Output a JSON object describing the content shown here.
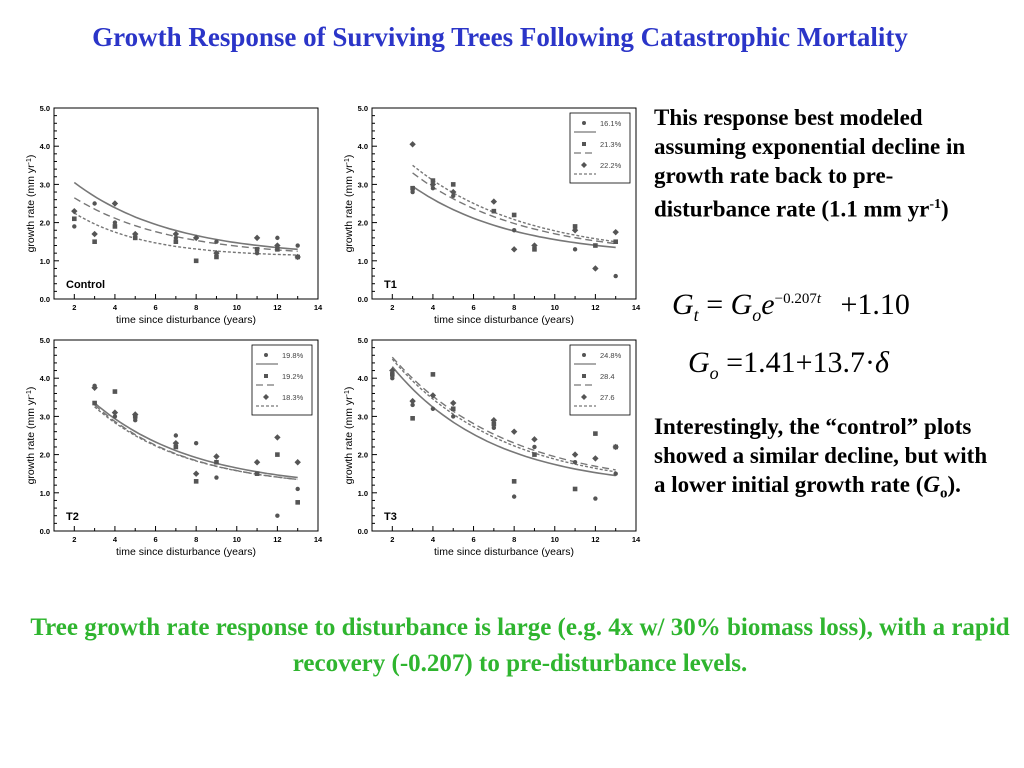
{
  "title": "Growth Response of Surviving Trees Following Catastrophic Mortality",
  "side": {
    "p1_a": "This response best modeled assuming exponential decline in growth rate back to pre-disturbance rate (1.1 mm yr",
    "p1_sup": "-1",
    "p1_b": ")",
    "p2_a": "Interestingly, the “control” plots showed a similar decline, but with a lower initial growth rate (",
    "p2_g": "G",
    "p2_o": "o",
    "p2_b": ")."
  },
  "equations": {
    "eq1": {
      "lhs": "G",
      "lhs_sub": "t",
      "eqsign": "=",
      "g": "G",
      "g_sub": "o",
      "e": "e",
      "exp": "−0.207",
      "exp_t": "t",
      "plus": "+1.10"
    },
    "eq2": {
      "lhs": "G",
      "lhs_sub": "o",
      "rhs": "=1.41+13.7·",
      "delta": "δ"
    }
  },
  "bottom_text": "Tree growth rate response to disturbance is large (e.g. 4x w/ 30% biomass loss), with a rapid recovery (-0.207) to pre-disturbance levels.",
  "chart_data": [
    {
      "type": "scatter",
      "panel_label": "Control",
      "xlabel": "time since disturbance (years)",
      "ylabel": "growth rate (mm yr",
      "ylabel_sup": "-1",
      "ylabel_end": ")",
      "xlim": [
        1,
        14
      ],
      "ylim": [
        0,
        5
      ],
      "xticks": [
        2,
        4,
        6,
        8,
        10,
        12,
        14
      ],
      "yticks": [
        "0.0",
        "1.0",
        "2.0",
        "3.0",
        "4.0",
        "5.0"
      ],
      "legend": [],
      "series": [
        {
          "marker": "circle",
          "line": "solid",
          "points": [
            [
              2,
              1.9
            ],
            [
              3,
              2.5
            ],
            [
              4,
              2.0
            ],
            [
              5,
              1.6
            ],
            [
              7,
              1.6
            ],
            [
              8,
              1.0
            ],
            [
              9,
              1.5
            ],
            [
              11,
              1.2
            ],
            [
              12,
              1.6
            ],
            [
              13,
              1.4
            ]
          ],
          "curve": [
            [
              2,
              3.05
            ],
            [
              13,
              1.3
            ]
          ]
        },
        {
          "marker": "square",
          "line": "dashed",
          "points": [
            [
              2,
              2.1
            ],
            [
              3,
              1.5
            ],
            [
              4,
              1.9
            ],
            [
              5,
              1.6
            ],
            [
              7,
              1.5
            ],
            [
              8,
              1.0
            ],
            [
              9,
              1.1
            ],
            [
              11,
              1.3
            ],
            [
              12,
              1.3
            ],
            [
              13,
              1.1
            ]
          ],
          "curve": [
            [
              2,
              2.65
            ],
            [
              13,
              1.25
            ]
          ]
        },
        {
          "marker": "diamond",
          "line": "dotted",
          "points": [
            [
              2,
              2.3
            ],
            [
              3,
              1.7
            ],
            [
              4,
              2.5
            ],
            [
              5,
              1.7
            ],
            [
              7,
              1.7
            ],
            [
              8,
              1.6
            ],
            [
              9,
              1.2
            ],
            [
              11,
              1.6
            ],
            [
              12,
              1.4
            ],
            [
              13,
              1.1
            ]
          ],
          "curve": [
            [
              2,
              2.25
            ],
            [
              13,
              1.15
            ]
          ]
        }
      ]
    },
    {
      "type": "scatter",
      "panel_label": "T1",
      "xlabel": "time since disturbance (years)",
      "ylabel": "growth rate (mm yr",
      "ylabel_sup": "-1",
      "ylabel_end": ")",
      "xlim": [
        1,
        14
      ],
      "ylim": [
        0,
        5
      ],
      "xticks": [
        2,
        4,
        6,
        8,
        10,
        12,
        14
      ],
      "yticks": [
        "0.0",
        "1.0",
        "2.0",
        "3.0",
        "4.0",
        "5.0"
      ],
      "legend": [
        "16.1%",
        "21.3%",
        "22.2%"
      ],
      "series": [
        {
          "marker": "circle",
          "line": "solid",
          "points": [
            [
              3,
              2.8
            ],
            [
              4,
              2.9
            ],
            [
              5,
              2.7
            ],
            [
              7,
              2.3
            ],
            [
              8,
              1.8
            ],
            [
              9,
              1.4
            ],
            [
              11,
              1.3
            ],
            [
              12,
              0.8
            ],
            [
              13,
              0.6
            ]
          ],
          "curve": [
            [
              3,
              2.95
            ],
            [
              13,
              1.35
            ]
          ]
        },
        {
          "marker": "square",
          "line": "dashed",
          "points": [
            [
              3,
              2.9
            ],
            [
              4,
              3.1
            ],
            [
              5,
              3.0
            ],
            [
              7,
              2.3
            ],
            [
              8,
              2.2
            ],
            [
              9,
              1.3
            ],
            [
              11,
              1.9
            ],
            [
              12,
              1.4
            ],
            [
              13,
              1.5
            ]
          ],
          "curve": [
            [
              3,
              3.3
            ],
            [
              13,
              1.45
            ]
          ]
        },
        {
          "marker": "diamond",
          "line": "dotted",
          "points": [
            [
              3,
              4.05
            ],
            [
              4,
              3.0
            ],
            [
              5,
              2.8
            ],
            [
              7,
              2.55
            ],
            [
              8,
              1.3
            ],
            [
              9,
              1.4
            ],
            [
              11,
              1.8
            ],
            [
              12,
              0.8
            ],
            [
              13,
              1.75
            ]
          ],
          "curve": [
            [
              3,
              3.5
            ],
            [
              13,
              1.5
            ]
          ]
        }
      ]
    },
    {
      "type": "scatter",
      "panel_label": "T2",
      "xlabel": "time since disturbance (years)",
      "ylabel": "growth rate (mm yr",
      "ylabel_sup": "-1",
      "ylabel_end": ")",
      "xlim": [
        1,
        14
      ],
      "ylim": [
        0,
        5
      ],
      "xticks": [
        2,
        4,
        6,
        8,
        10,
        12,
        14
      ],
      "yticks": [
        "0.0",
        "1.0",
        "2.0",
        "3.0",
        "4.0",
        "5.0"
      ],
      "legend": [
        "19.8%",
        "19.2%",
        "18.3%"
      ],
      "series": [
        {
          "marker": "circle",
          "line": "solid",
          "points": [
            [
              3,
              3.8
            ],
            [
              4,
              3.0
            ],
            [
              5,
              2.9
            ],
            [
              7,
              2.5
            ],
            [
              8,
              2.3
            ],
            [
              9,
              1.4
            ],
            [
              11,
              1.5
            ],
            [
              12,
              0.4
            ],
            [
              13,
              1.1
            ]
          ],
          "curve": [
            [
              3,
              3.35
            ],
            [
              13,
              1.4
            ]
          ]
        },
        {
          "marker": "square",
          "line": "dashed",
          "points": [
            [
              3,
              3.35
            ],
            [
              4,
              3.65
            ],
            [
              5,
              3.0
            ],
            [
              7,
              2.2
            ],
            [
              8,
              1.3
            ],
            [
              9,
              1.8
            ],
            [
              11,
              1.5
            ],
            [
              12,
              2.0
            ],
            [
              13,
              0.75
            ]
          ],
          "curve": [
            [
              3,
              3.3
            ],
            [
              13,
              1.35
            ]
          ]
        },
        {
          "marker": "diamond",
          "line": "dotted",
          "points": [
            [
              3,
              3.75
            ],
            [
              4,
              3.1
            ],
            [
              5,
              3.05
            ],
            [
              7,
              2.3
            ],
            [
              8,
              1.5
            ],
            [
              9,
              1.95
            ],
            [
              11,
              1.8
            ],
            [
              12,
              2.45
            ],
            [
              13,
              1.8
            ]
          ],
          "curve": [
            [
              3,
              3.25
            ],
            [
              13,
              1.35
            ]
          ]
        }
      ]
    },
    {
      "type": "scatter",
      "panel_label": "T3",
      "xlabel": "time since disturbance (years)",
      "ylabel": "growth rate (mm yr",
      "ylabel_sup": "-1",
      "ylabel_end": ")",
      "xlim": [
        1,
        14
      ],
      "ylim": [
        0,
        5
      ],
      "xticks": [
        2,
        4,
        6,
        8,
        10,
        12,
        14
      ],
      "yticks": [
        "0.0",
        "1.0",
        "2.0",
        "3.0",
        "4.0",
        "5.0"
      ],
      "legend": [
        "24.8%",
        "28.4",
        "27.6"
      ],
      "series": [
        {
          "marker": "circle",
          "line": "solid",
          "points": [
            [
              2,
              4.0
            ],
            [
              3,
              3.3
            ],
            [
              4,
              3.2
            ],
            [
              5,
              3.0
            ],
            [
              7,
              2.7
            ],
            [
              8,
              0.9
            ],
            [
              9,
              2.2
            ],
            [
              11,
              1.8
            ],
            [
              12,
              0.85
            ],
            [
              13,
              1.5
            ]
          ],
          "curve": [
            [
              2,
              4.3
            ],
            [
              13,
              1.45
            ]
          ]
        },
        {
          "marker": "square",
          "line": "dashed",
          "points": [
            [
              2,
              4.1
            ],
            [
              3,
              2.95
            ],
            [
              4,
              4.1
            ],
            [
              5,
              3.2
            ],
            [
              7,
              2.8
            ],
            [
              8,
              1.3
            ],
            [
              9,
              2.0
            ],
            [
              11,
              1.1
            ],
            [
              12,
              2.55
            ],
            [
              13,
              2.2
            ]
          ],
          "curve": [
            [
              2,
              4.55
            ],
            [
              13,
              1.6
            ]
          ]
        },
        {
          "marker": "diamond",
          "line": "dotted",
          "points": [
            [
              2,
              4.2
            ],
            [
              3,
              3.4
            ],
            [
              4,
              3.55
            ],
            [
              5,
              3.35
            ],
            [
              7,
              2.9
            ],
            [
              8,
              2.6
            ],
            [
              9,
              2.4
            ],
            [
              11,
              2.0
            ],
            [
              12,
              1.9
            ],
            [
              13,
              2.2
            ]
          ],
          "curve": [
            [
              2,
              4.5
            ],
            [
              13,
              1.55
            ]
          ]
        }
      ]
    }
  ]
}
